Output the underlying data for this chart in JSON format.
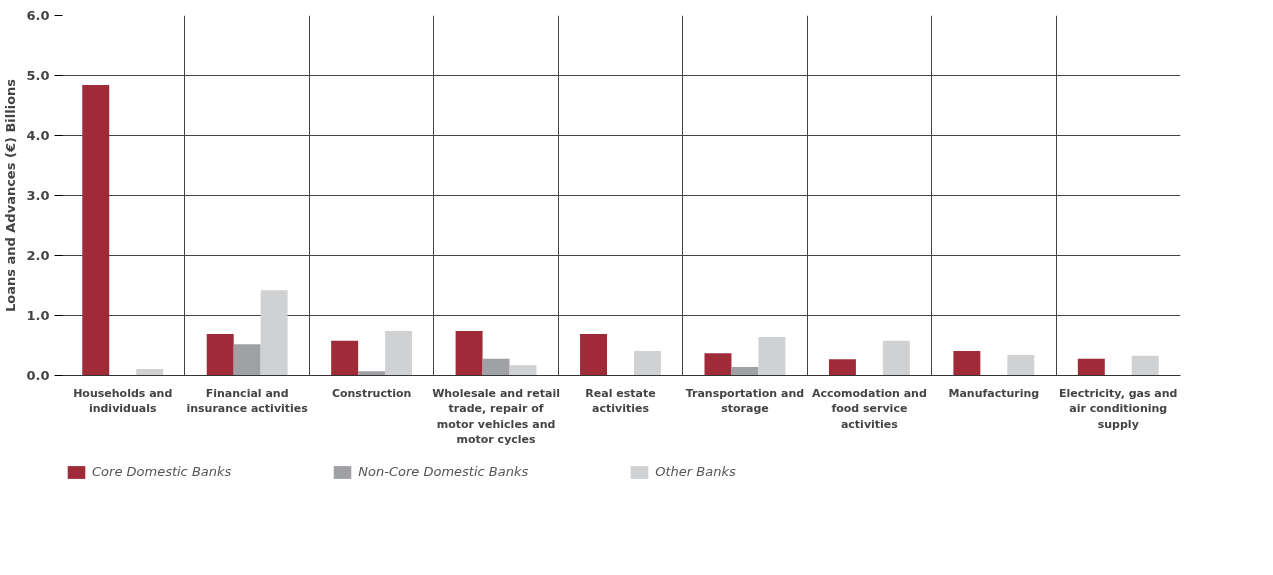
{
  "chart_data": {
    "type": "bar",
    "ylabel": "Loans and Advances (€) Billions",
    "categories": [
      "Households and individuals",
      "Financial and insurance activities",
      "Construction",
      "Wholesale and retail trade, repair of motor vehicles and motor cycles",
      "Real estate activities",
      "Transportation and storage",
      "Accomodation and food service activities",
      "Manufacturing",
      "Electricity, gas and air conditioning supply"
    ],
    "series": [
      {
        "name": "Core Domestic Banks",
        "color": "#9e2b37",
        "values": [
          4.84,
          0.69,
          0.58,
          0.74,
          0.69,
          0.37,
          0.27,
          0.41,
          0.28
        ]
      },
      {
        "name": "Non-Core Domestic Banks",
        "color": "#a0a1a5",
        "values": [
          null,
          0.52,
          0.07,
          0.28,
          null,
          0.14,
          null,
          null,
          null
        ]
      },
      {
        "name": "Other Banks",
        "color": "#d0d1d3",
        "values": [
          0.11,
          1.42,
          0.74,
          0.17,
          0.41,
          0.64,
          0.58,
          0.34,
          0.33
        ]
      }
    ],
    "ylim": [
      0,
      6
    ],
    "yticks": [
      {
        "value": 0,
        "label": "0.0"
      },
      {
        "value": 1,
        "label": "1.0"
      },
      {
        "value": 2,
        "label": "2.0"
      },
      {
        "value": 3,
        "label": "3.0"
      },
      {
        "value": 4,
        "label": "4.0"
      },
      {
        "value": 5,
        "label": "5.0"
      },
      {
        "value": 6,
        "label": "6.0"
      }
    ],
    "grid": true,
    "legend": "bottom"
  }
}
